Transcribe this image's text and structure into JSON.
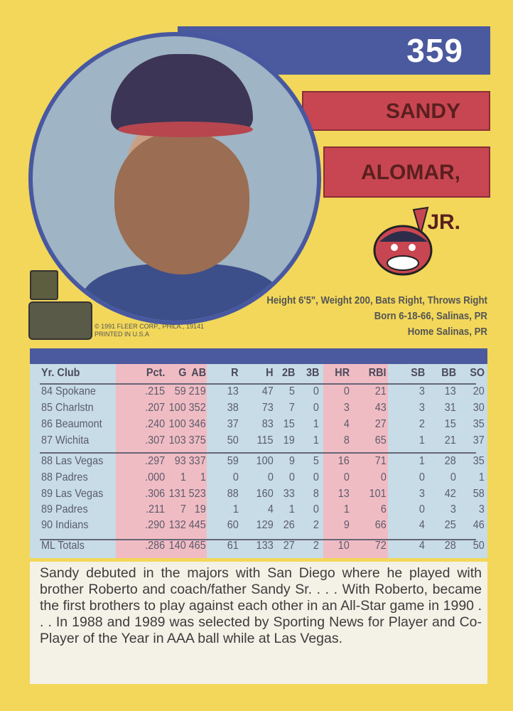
{
  "card": {
    "number": "359",
    "first_name": "SANDY",
    "last_name": "ALOMAR, JR.",
    "vitals": [
      "Height 6'5\", Weight 200, Bats Right, Throws Right",
      "Born 6-18-66, Salinas, PR",
      "Home Salinas, PR"
    ],
    "copyright": [
      "© 1991 FLEER CORP., PHILA., 19141",
      "PRINTED IN U.S.A"
    ],
    "team_logo": "cleveland-indians-logo",
    "colors": {
      "background": "#f2d75a",
      "blue": "#4b5a9e",
      "red": "#c84651",
      "table": "#c7dce6",
      "pink": "#f0bcc4"
    }
  },
  "stats": {
    "headers": [
      "Yr. Club",
      "Pct.",
      "G",
      "AB",
      "R",
      "H",
      "2B",
      "3B",
      "HR",
      "RBI",
      "SB",
      "BB",
      "SO"
    ],
    "rows": [
      [
        "84 Spokane",
        ".215",
        "59",
        "219",
        "13",
        "47",
        "5",
        "0",
        "0",
        "21",
        "3",
        "13",
        "20"
      ],
      [
        "85 Charlstn",
        ".207",
        "100",
        "352",
        "38",
        "73",
        "7",
        "0",
        "3",
        "43",
        "3",
        "31",
        "30"
      ],
      [
        "86 Beaumont",
        ".240",
        "100",
        "346",
        "37",
        "83",
        "15",
        "1",
        "4",
        "27",
        "2",
        "15",
        "35"
      ],
      [
        "87 Wichita",
        ".307",
        "103",
        "375",
        "50",
        "115",
        "19",
        "1",
        "8",
        "65",
        "1",
        "21",
        "37"
      ],
      [
        "88 Las Vegas",
        ".297",
        "93",
        "337",
        "59",
        "100",
        "9",
        "5",
        "16",
        "71",
        "1",
        "28",
        "35"
      ],
      [
        "88 Padres",
        ".000",
        "1",
        "1",
        "0",
        "0",
        "0",
        "0",
        "0",
        "0",
        "0",
        "0",
        "1"
      ],
      [
        "89 Las Vegas",
        ".306",
        "131",
        "523",
        "88",
        "160",
        "33",
        "8",
        "13",
        "101",
        "3",
        "42",
        "58"
      ],
      [
        "89 Padres",
        ".211",
        "7",
        "19",
        "1",
        "4",
        "1",
        "0",
        "1",
        "6",
        "0",
        "3",
        "3"
      ],
      [
        "90 Indians",
        ".290",
        "132",
        "445",
        "60",
        "129",
        "26",
        "2",
        "9",
        "66",
        "4",
        "25",
        "46"
      ]
    ],
    "totals": [
      "ML Totals",
      ".286",
      "140",
      "465",
      "61",
      "133",
      "27",
      "2",
      "10",
      "72",
      "4",
      "28",
      "50"
    ]
  },
  "bio": "Sandy debuted in the majors with San Diego where he played with brother Roberto and coach/father Sandy Sr. . . . With Roberto, became the first brothers to play against each other in an All-Star game in 1990 . . . In 1988 and 1989 was selected by Sporting News for Player and Co-Player of the Year in AAA ball while at Las Vegas."
}
